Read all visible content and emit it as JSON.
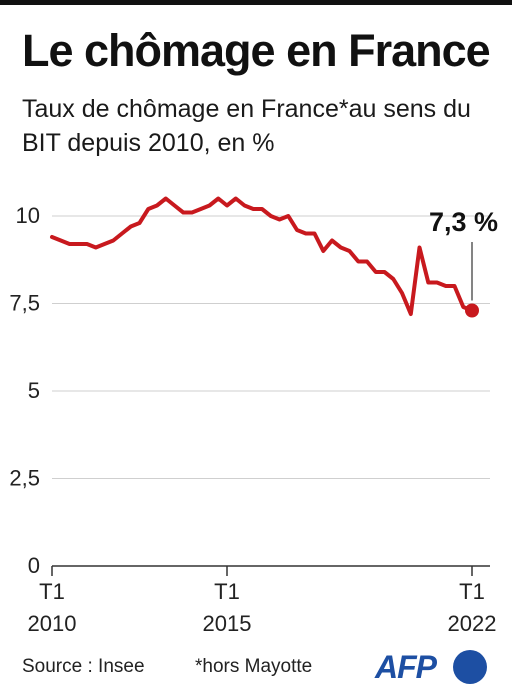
{
  "header": {
    "title": "Le chômage en France",
    "subtitle": "Taux de chômage en France*au sens du BIT depuis 2010, en %"
  },
  "footer": {
    "source": "Source : Insee",
    "note": "*hors Mayotte",
    "logo": "AFP"
  },
  "colors": {
    "line": "#c8191e",
    "grid": "#cfcfcf",
    "axis": "#333333",
    "brand": "#1d4fa3"
  },
  "chart_data": {
    "type": "line",
    "title": "Le chômage en France",
    "xlabel": "",
    "ylabel": "",
    "ylim": [
      0,
      10.5
    ],
    "grid": true,
    "y_ticks": [
      {
        "value": 0,
        "label": "0"
      },
      {
        "value": 2.5,
        "label": "2,5"
      },
      {
        "value": 5,
        "label": "5"
      },
      {
        "value": 7.5,
        "label": "7,5"
      },
      {
        "value": 10,
        "label": "10"
      }
    ],
    "x_ticks": [
      {
        "x": 2010.0,
        "quarter": "T1",
        "year": "2010"
      },
      {
        "x": 2015.0,
        "quarter": "T1",
        "year": "2015"
      },
      {
        "x": 2022.0,
        "quarter": "T1",
        "year": "2022"
      }
    ],
    "series": [
      {
        "name": "",
        "x": [
          2010.0,
          2010.25,
          2010.5,
          2010.75,
          2011.0,
          2011.25,
          2011.5,
          2011.75,
          2012.0,
          2012.25,
          2012.5,
          2012.75,
          2013.0,
          2013.25,
          2013.5,
          2013.75,
          2014.0,
          2014.25,
          2014.5,
          2014.75,
          2015.0,
          2015.25,
          2015.5,
          2015.75,
          2016.0,
          2016.25,
          2016.5,
          2016.75,
          2017.0,
          2017.25,
          2017.5,
          2017.75,
          2018.0,
          2018.25,
          2018.5,
          2018.75,
          2019.0,
          2019.25,
          2019.5,
          2019.75,
          2020.0,
          2020.25,
          2020.5,
          2020.75,
          2021.0,
          2021.25,
          2021.5,
          2021.75,
          2022.0
        ],
        "values": [
          9.4,
          9.3,
          9.2,
          9.2,
          9.2,
          9.1,
          9.2,
          9.3,
          9.5,
          9.7,
          9.8,
          10.2,
          10.3,
          10.5,
          10.3,
          10.1,
          10.1,
          10.2,
          10.3,
          10.5,
          10.3,
          10.5,
          10.3,
          10.2,
          10.2,
          10.0,
          9.9,
          10.0,
          9.6,
          9.5,
          9.5,
          9.0,
          9.3,
          9.1,
          9.0,
          8.7,
          8.7,
          8.4,
          8.4,
          8.2,
          7.8,
          7.2,
          9.1,
          8.1,
          8.1,
          8.0,
          8.0,
          7.4,
          7.3
        ]
      }
    ],
    "annotations": [
      {
        "x": 2022.0,
        "y": 7.3,
        "label": "7,3 %"
      }
    ]
  }
}
